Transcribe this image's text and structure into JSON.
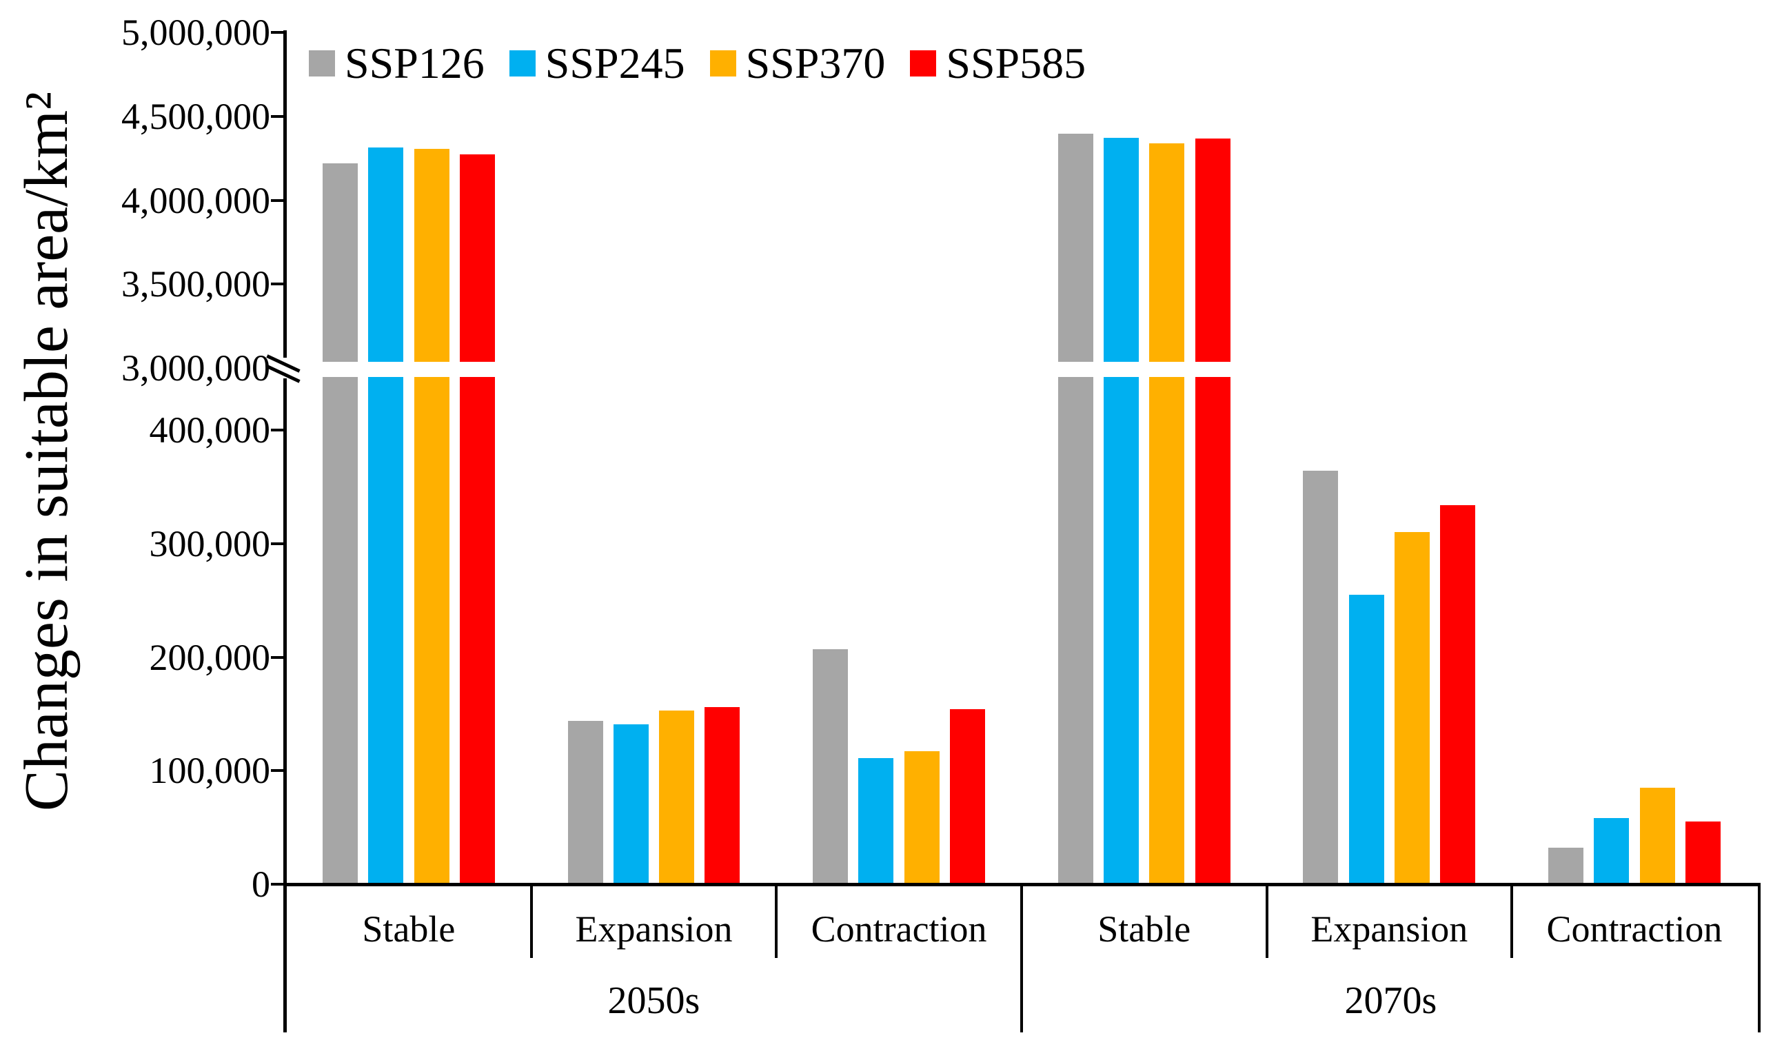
{
  "chart_data": {
    "type": "bar",
    "title": "",
    "ylabel": "Changes in suitable area/km²",
    "xlabel": "",
    "legend_position": "top-left",
    "grid": false,
    "series_names": [
      "SSP126",
      "SSP245",
      "SSP370",
      "SSP585"
    ],
    "series_colors": [
      "#A6A6A6",
      "#00B0F0",
      "#FFB000",
      "#FF0000"
    ],
    "period_labels": [
      "2050s",
      "2070s"
    ],
    "category_labels": [
      "Stable",
      "Expansion",
      "Contraction"
    ],
    "axis_break": {
      "lower_segment_range": [
        0,
        450000
      ],
      "upper_segment_range": [
        3000000,
        5000000
      ],
      "note": "y-axis broken between 450,000 and 3,000,000"
    },
    "y_axis": {
      "upper_ticks": [
        {
          "v": 5000000,
          "label": "5,000,000",
          "has_tick": true
        },
        {
          "v": 4500000,
          "label": "4,500,000",
          "has_tick": true
        },
        {
          "v": 4000000,
          "label": "4,000,000",
          "has_tick": true
        },
        {
          "v": 3500000,
          "label": "3,500,000",
          "has_tick": true
        },
        {
          "v": 3000000,
          "label": "3,000,000",
          "has_tick": false
        }
      ],
      "lower_ticks": [
        {
          "v": 400000,
          "label": "400,000",
          "has_tick": true
        },
        {
          "v": 300000,
          "label": "300,000",
          "has_tick": true
        },
        {
          "v": 200000,
          "label": "200,000",
          "has_tick": true
        },
        {
          "v": 100000,
          "label": "100,000",
          "has_tick": true
        },
        {
          "v": 0,
          "label": "0",
          "has_tick": true
        }
      ]
    },
    "data": [
      {
        "period": "2050s",
        "category": "Stable",
        "values": [
          4220000,
          4315000,
          4305000,
          4275000
        ]
      },
      {
        "period": "2050s",
        "category": "Expansion",
        "values": [
          144000,
          141000,
          153000,
          156000
        ]
      },
      {
        "period": "2050s",
        "category": "Contraction",
        "values": [
          207000,
          111000,
          117000,
          154000
        ]
      },
      {
        "period": "2070s",
        "category": "Stable",
        "values": [
          4395000,
          4370000,
          4340000,
          4368000
        ]
      },
      {
        "period": "2070s",
        "category": "Expansion",
        "values": [
          364000,
          255000,
          310000,
          334000
        ]
      },
      {
        "period": "2070s",
        "category": "Contraction",
        "values": [
          32000,
          58000,
          85000,
          55000
        ]
      }
    ]
  }
}
